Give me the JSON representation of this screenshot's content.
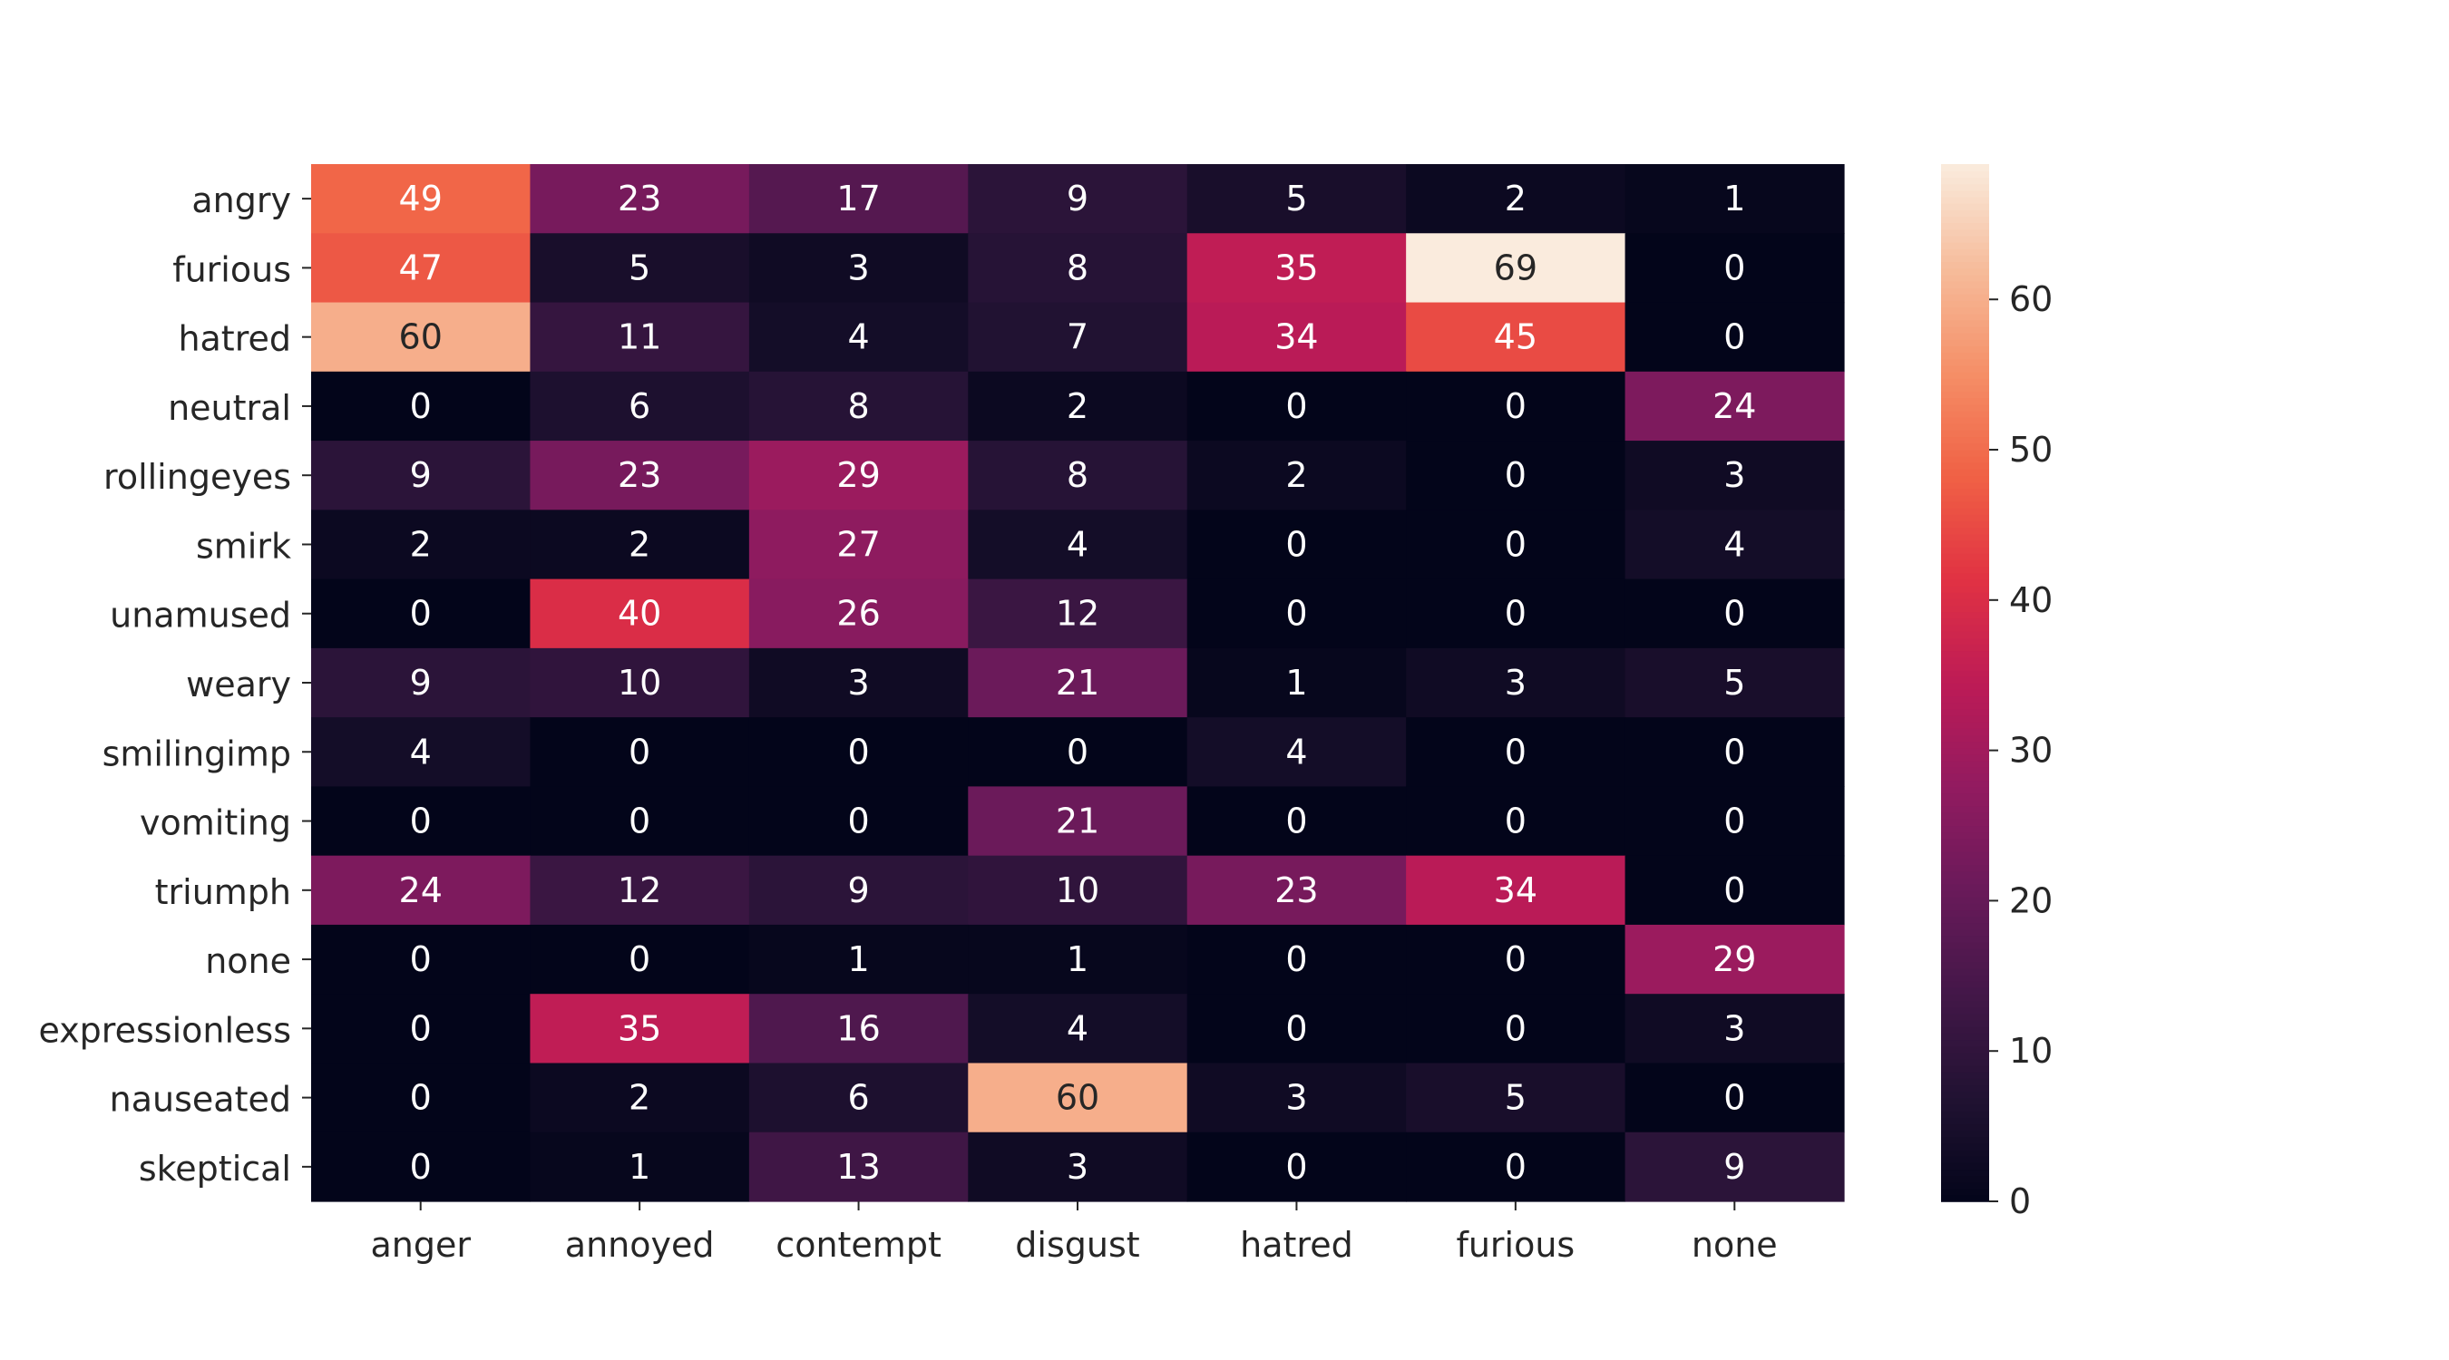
{
  "chart_data": {
    "type": "heatmap",
    "title": "",
    "xlabel": "",
    "ylabel": "",
    "x_categories": [
      "anger",
      "annoyed",
      "contempt",
      "disgust",
      "hatred",
      "furious",
      "none"
    ],
    "y_categories": [
      "angry",
      "furious",
      "hatred",
      "neutral",
      "rollingeyes",
      "smirk",
      "unamused",
      "weary",
      "smilingimp",
      "vomiting",
      "triumph",
      "none",
      "expressionless",
      "nauseated",
      "skeptical"
    ],
    "values": [
      [
        49,
        23,
        17,
        9,
        5,
        2,
        1
      ],
      [
        47,
        5,
        3,
        8,
        35,
        69,
        0
      ],
      [
        60,
        11,
        4,
        7,
        34,
        45,
        0
      ],
      [
        0,
        6,
        8,
        2,
        0,
        0,
        24
      ],
      [
        9,
        23,
        29,
        8,
        2,
        0,
        3
      ],
      [
        2,
        2,
        27,
        4,
        0,
        0,
        4
      ],
      [
        0,
        40,
        26,
        12,
        0,
        0,
        0
      ],
      [
        9,
        10,
        3,
        21,
        1,
        3,
        5
      ],
      [
        4,
        0,
        0,
        0,
        4,
        0,
        0
      ],
      [
        0,
        0,
        0,
        21,
        0,
        0,
        0
      ],
      [
        24,
        12,
        9,
        10,
        23,
        34,
        0
      ],
      [
        0,
        0,
        1,
        1,
        0,
        0,
        29
      ],
      [
        0,
        35,
        16,
        4,
        0,
        0,
        3
      ],
      [
        0,
        2,
        6,
        60,
        3,
        5,
        0
      ],
      [
        0,
        1,
        13,
        3,
        0,
        0,
        9
      ]
    ],
    "value_range": [
      0,
      69
    ],
    "colorbar": {
      "ticks": [
        0,
        10,
        20,
        30,
        40,
        50,
        60
      ],
      "placement": "right"
    },
    "colormap": "rocket",
    "grid": false
  }
}
